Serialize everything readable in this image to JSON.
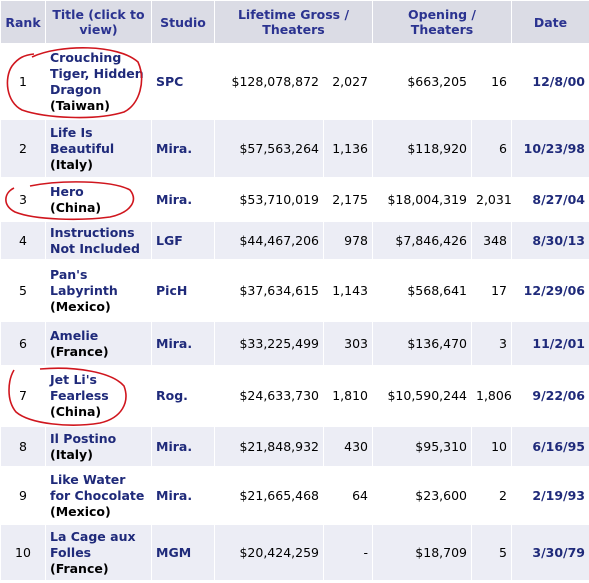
{
  "headers": {
    "rank": "Rank",
    "title": "Title (click to view)",
    "studio": "Studio",
    "lifetime": "Lifetime Gross / Theaters",
    "opening": "Opening / Theaters",
    "date": "Date"
  },
  "rows": [
    {
      "rank": "1",
      "title": "Crouching Tiger, Hidden Dragon",
      "country": "(Taiwan)",
      "studio": "SPC",
      "gross": "$128,078,872",
      "theaters": "2,027",
      "opening": "$663,205",
      "open_theaters": "16",
      "date": "12/8/00"
    },
    {
      "rank": "2",
      "title": "Life Is Beautiful",
      "country": "(Italy)",
      "studio": "Mira.",
      "gross": "$57,563,264",
      "theaters": "1,136",
      "opening": "$118,920",
      "open_theaters": "6",
      "date": "10/23/98"
    },
    {
      "rank": "3",
      "title": "Hero",
      "country": "(China)",
      "studio": "Mira.",
      "gross": "$53,710,019",
      "theaters": "2,175",
      "opening": "$18,004,319",
      "open_theaters": "2,031",
      "date": "8/27/04"
    },
    {
      "rank": "4",
      "title": "Instructions Not Included",
      "country": "",
      "studio": "LGF",
      "gross": "$44,467,206",
      "theaters": "978",
      "opening": "$7,846,426",
      "open_theaters": "348",
      "date": "8/30/13"
    },
    {
      "rank": "5",
      "title": "Pan's Labyrinth",
      "country": "(Mexico)",
      "studio": "PicH",
      "gross": "$37,634,615",
      "theaters": "1,143",
      "opening": "$568,641",
      "open_theaters": "17",
      "date": "12/29/06"
    },
    {
      "rank": "6",
      "title": "Amelie",
      "country": "(France)",
      "studio": "Mira.",
      "gross": "$33,225,499",
      "theaters": "303",
      "opening": "$136,470",
      "open_theaters": "3",
      "date": "11/2/01"
    },
    {
      "rank": "7",
      "title": "Jet Li's Fearless",
      "country": "(China)",
      "studio": "Rog.",
      "gross": "$24,633,730",
      "theaters": "1,810",
      "opening": "$10,590,244",
      "open_theaters": "1,806",
      "date": "9/22/06"
    },
    {
      "rank": "8",
      "title": "Il Postino",
      "country": "(Italy)",
      "studio": "Mira.",
      "gross": "$21,848,932",
      "theaters": "430",
      "opening": "$95,310",
      "open_theaters": "10",
      "date": "6/16/95"
    },
    {
      "rank": "9",
      "title": "Like Water for Chocolate",
      "country": "(Mexico)",
      "studio": "Mira.",
      "gross": "$21,665,468",
      "theaters": "64",
      "opening": "$23,600",
      "open_theaters": "2",
      "date": "2/19/93"
    },
    {
      "rank": "10",
      "title": "La Cage aux Folles",
      "country": "(France)",
      "studio": "MGM",
      "gross": "$20,424,259",
      "theaters": "-",
      "opening": "$18,709",
      "open_theaters": "5",
      "date": "3/30/79"
    }
  ],
  "annotation_color": "#d0161e"
}
